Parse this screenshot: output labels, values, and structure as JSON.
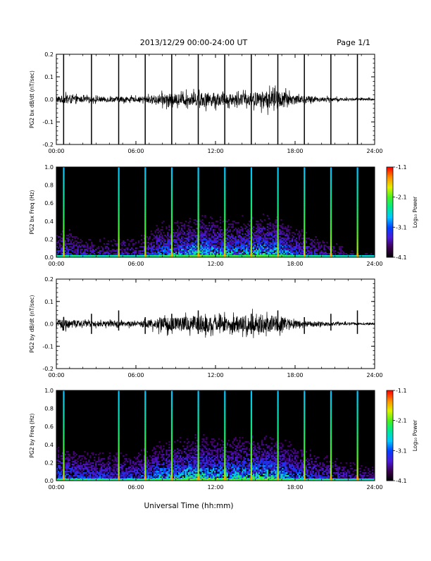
{
  "header": {
    "title": "2013/12/29  00:00-24:00 UT",
    "page_label": "Page 1/1"
  },
  "xaxis": {
    "label": "Universal Time (hh:mm)",
    "ticks": [
      "00:00",
      "06:00",
      "12:00",
      "18:00",
      "24:00"
    ]
  },
  "colorbar": {
    "label": "Log₁₀ Power",
    "ticks": [
      "-1.1",
      "-2.1",
      "-3.1",
      "-4.1"
    ],
    "colors": [
      "#000000",
      "#3b0050",
      "#4a1ad8",
      "#0040ff",
      "#00c8ff",
      "#00e890",
      "#48f020",
      "#e0f000",
      "#ff8c00",
      "#ff0000"
    ]
  },
  "chart_data": [
    {
      "type": "line",
      "title": "",
      "ylabel": "PG2 bx dB/dt (nT/sec)",
      "xlabel": "",
      "xlim": [
        "00:00",
        "24:00"
      ],
      "ylim": [
        -0.2,
        0.2
      ],
      "yticks": [
        "0.2",
        "0.1",
        "0.0",
        "-0.1",
        "-0.2"
      ],
      "line_color": "#000000",
      "spike_times_hr": [
        0.55,
        2.65,
        4.7,
        6.7,
        8.7,
        10.7,
        12.7,
        14.7,
        16.7,
        18.7,
        20.7,
        22.7
      ],
      "envelope": {
        "x_hr": [
          0,
          1,
          2,
          3,
          4,
          5,
          6,
          7,
          8,
          9,
          10,
          11,
          12,
          13,
          14,
          15,
          16,
          17,
          18,
          19,
          20,
          21,
          22,
          23,
          24
        ],
        "amplitude": [
          0.015,
          0.02,
          0.012,
          0.012,
          0.012,
          0.012,
          0.01,
          0.015,
          0.025,
          0.025,
          0.025,
          0.03,
          0.03,
          0.025,
          0.025,
          0.03,
          0.04,
          0.035,
          0.02,
          0.015,
          0.01,
          0.008,
          0.006,
          0.005,
          0.005
        ]
      }
    },
    {
      "type": "heatmap",
      "title": "",
      "ylabel": "PG2 bx Freq (Hz)",
      "xlabel": "",
      "xlim": [
        "00:00",
        "24:00"
      ],
      "ylim": [
        0.0,
        1.0
      ],
      "yticks": [
        "1.0",
        "0.8",
        "0.6",
        "0.4",
        "0.2",
        "0.0"
      ],
      "value_range": [
        -4.1,
        -1.1
      ],
      "spike_times_hr": [
        0.55,
        4.7,
        6.7,
        8.7,
        10.7,
        12.7,
        14.7,
        16.7,
        18.7,
        20.7,
        22.7
      ],
      "activity": {
        "x_hr": [
          0,
          1,
          2,
          3,
          4,
          5,
          6,
          7,
          8,
          9,
          10,
          11,
          12,
          13,
          14,
          15,
          16,
          17,
          18,
          19,
          20,
          21,
          22,
          23,
          24
        ],
        "level": [
          0.4,
          0.45,
          0.3,
          0.3,
          0.3,
          0.35,
          0.3,
          0.4,
          0.6,
          0.65,
          0.7,
          0.8,
          0.75,
          0.7,
          0.7,
          0.75,
          0.8,
          0.7,
          0.5,
          0.4,
          0.3,
          0.25,
          0.2,
          0.15,
          0.15
        ]
      }
    },
    {
      "type": "line",
      "title": "",
      "ylabel": "PG2 by dB/dt (nT/sec)",
      "xlabel": "",
      "xlim": [
        "00:00",
        "24:00"
      ],
      "ylim": [
        -0.2,
        0.2
      ],
      "yticks": [
        "0.2",
        "0.1",
        "0.0",
        "-0.1",
        "-0.2"
      ],
      "line_color": "#000000",
      "spike_times_hr": [
        0.55,
        2.65,
        4.7,
        6.7,
        8.7,
        10.7,
        12.7,
        14.7,
        16.7,
        18.7,
        20.7,
        22.7
      ],
      "envelope": {
        "x_hr": [
          0,
          1,
          2,
          3,
          4,
          5,
          6,
          7,
          8,
          9,
          10,
          11,
          12,
          13,
          14,
          15,
          16,
          17,
          18,
          19,
          20,
          21,
          22,
          23,
          24
        ],
        "amplitude": [
          0.02,
          0.02,
          0.012,
          0.012,
          0.012,
          0.012,
          0.01,
          0.02,
          0.03,
          0.03,
          0.035,
          0.04,
          0.03,
          0.03,
          0.035,
          0.04,
          0.04,
          0.03,
          0.015,
          0.012,
          0.01,
          0.008,
          0.007,
          0.005,
          0.005
        ]
      }
    },
    {
      "type": "heatmap",
      "title": "",
      "ylabel": "PG2 by Freq (Hz)",
      "xlabel": "",
      "xlim": [
        "00:00",
        "24:00"
      ],
      "ylim": [
        0.0,
        1.0
      ],
      "yticks": [
        "1.0",
        "0.8",
        "0.6",
        "0.4",
        "0.2",
        "0.0"
      ],
      "value_range": [
        -4.1,
        -1.1
      ],
      "spike_times_hr": [
        0.55,
        4.7,
        6.7,
        8.7,
        10.7,
        12.7,
        14.7,
        16.7,
        18.7,
        20.7,
        22.7
      ],
      "activity": {
        "x_hr": [
          0,
          1,
          2,
          3,
          4,
          5,
          6,
          7,
          8,
          9,
          10,
          11,
          12,
          13,
          14,
          15,
          16,
          17,
          18,
          19,
          20,
          21,
          22,
          23,
          24
        ],
        "level": [
          0.55,
          0.55,
          0.45,
          0.45,
          0.45,
          0.45,
          0.45,
          0.55,
          0.7,
          0.75,
          0.8,
          0.85,
          0.8,
          0.8,
          0.8,
          0.8,
          0.85,
          0.75,
          0.6,
          0.5,
          0.4,
          0.35,
          0.3,
          0.25,
          0.25
        ]
      }
    }
  ]
}
